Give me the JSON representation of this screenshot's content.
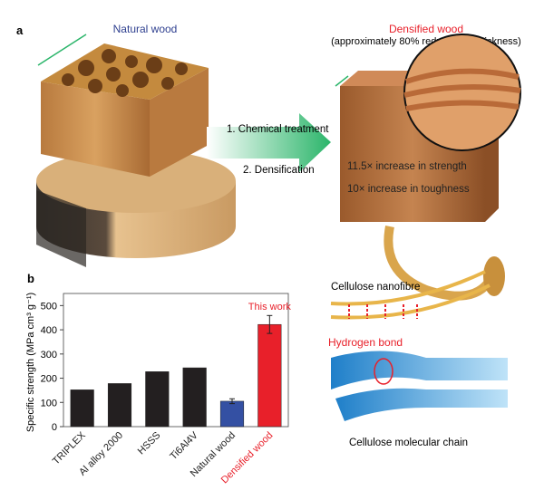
{
  "panel_a": {
    "label": "a",
    "natural_wood": "Natural wood",
    "densified_wood": "Densified wood",
    "densified_note": "(approximately 80% reduction in thickness)",
    "step1": "1. Chemical treatment",
    "step2": "2. Densification",
    "strength": "11.5× increase in strength",
    "toughness": "10× increase in toughness",
    "nanofibre": "Cellulose nanofibre",
    "hbond": "Hydrogen bond",
    "chain": "Cellulose molecular chain"
  },
  "colors": {
    "natural_title": "#2e3f8f",
    "densified": "#e8202a",
    "arrow": "#2bb56a",
    "bar_metal": "#231f20",
    "bar_natural": "#3450a3",
    "bar_densified": "#e8202a"
  },
  "chart_data": {
    "type": "bar",
    "panel_label": "b",
    "categories": [
      "TRIPLEX",
      "Al alloy 2000",
      "HSSS",
      "Ti6Al4V",
      "Natural wood",
      "Densified wood"
    ],
    "values": [
      152,
      178,
      227,
      243,
      105,
      422
    ],
    "errors": [
      null,
      null,
      null,
      null,
      10,
      37
    ],
    "bar_colors": [
      "#231f20",
      "#231f20",
      "#231f20",
      "#231f20",
      "#3450a3",
      "#e8202a"
    ],
    "ylabel": "Specific strength (MPa cm³ g⁻¹)",
    "ylim": [
      0,
      550
    ],
    "yticks": [
      0,
      100,
      200,
      300,
      400,
      500
    ],
    "annotation": "This work",
    "grid": false
  }
}
